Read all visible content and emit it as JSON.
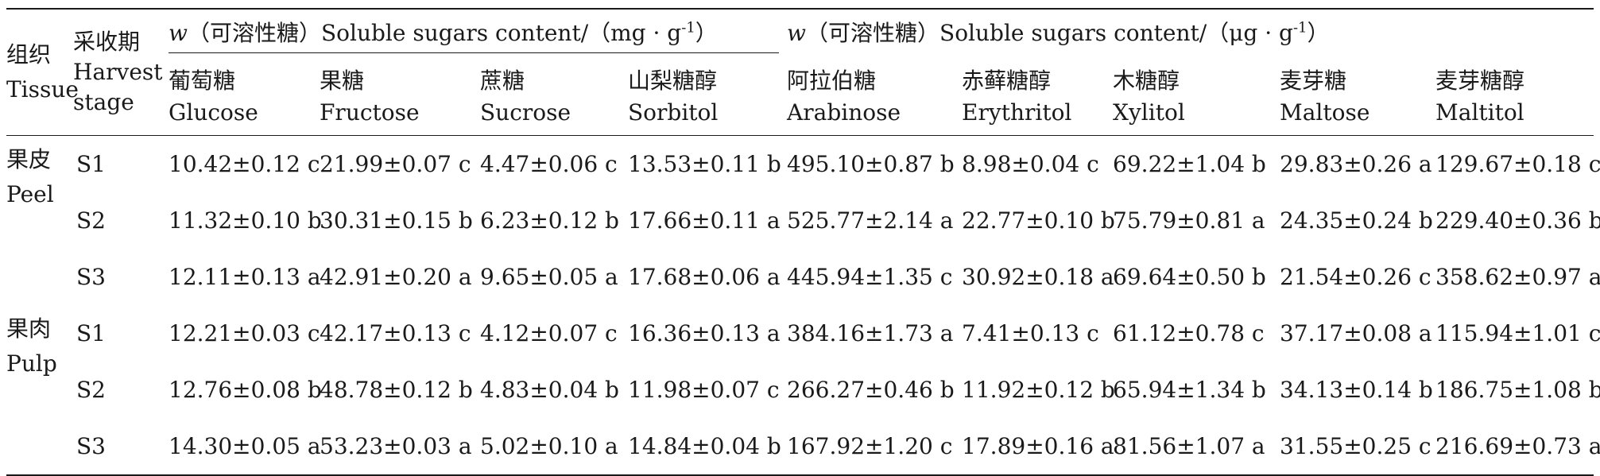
{
  "headers": {
    "tissue": [
      "组织",
      "Tissue"
    ],
    "stage": [
      "采收期",
      "Harvest",
      "stage"
    ],
    "group1": {
      "var": "w",
      "text": "（可溶性糖）Soluble sugars content/（mg · g",
      "sup": "-1",
      "close": "）"
    },
    "group2": {
      "var": "w",
      "text": "（可溶性糖）Soluble sugars content/（μg · g",
      "sup": "-1",
      "close": "）"
    },
    "cols": [
      [
        "葡萄糖",
        "Glucose"
      ],
      [
        "果糖",
        "Fructose"
      ],
      [
        "蔗糖",
        "Sucrose"
      ],
      [
        "山梨糖醇",
        "Sorbitol"
      ],
      [
        "阿拉伯糖",
        "Arabinose"
      ],
      [
        "赤藓糖醇",
        "Erythritol"
      ],
      [
        "木糖醇",
        "Xylitol"
      ],
      [
        "麦芽糖",
        "Maltose"
      ],
      [
        "麦芽糖醇",
        "Maltitol"
      ]
    ]
  },
  "rows": [
    {
      "tissue": [
        "果皮",
        "Peel"
      ],
      "stage": "S1",
      "values": [
        "10.42±0.12 c",
        "21.99±0.07 c",
        "4.47±0.06 c",
        "13.53±0.11 b",
        "495.10±0.87 b",
        "8.98±0.04 c",
        "69.22±1.04 b",
        "29.83±0.26 a",
        "129.67±0.18 c"
      ]
    },
    {
      "tissue": null,
      "stage": "S2",
      "values": [
        "11.32±0.10 b",
        "30.31±0.15 b",
        "6.23±0.12 b",
        "17.66±0.11 a",
        "525.77±2.14 a",
        "22.77±0.10 b",
        "75.79±0.81 a",
        "24.35±0.24 b",
        "229.40±0.36 b"
      ]
    },
    {
      "tissue": null,
      "stage": "S3",
      "values": [
        "12.11±0.13 a",
        "42.91±0.20 a",
        "9.65±0.05 a",
        "17.68±0.06 a",
        "445.94±1.35 c",
        "30.92±0.18 a",
        "69.64±0.50 b",
        "21.54±0.26 c",
        "358.62±0.97 a"
      ]
    },
    {
      "tissue": [
        "果肉",
        "Pulp"
      ],
      "stage": "S1",
      "values": [
        "12.21±0.03 c",
        "42.17±0.13 c",
        "4.12±0.07 c",
        "16.36±0.13 a",
        "384.16±1.73 a",
        "7.41±0.13 c",
        "61.12±0.78 c",
        "37.17±0.08 a",
        "115.94±1.01 c"
      ]
    },
    {
      "tissue": null,
      "stage": "S2",
      "values": [
        "12.76±0.08 b",
        "48.78±0.12 b",
        "4.83±0.04 b",
        "11.98±0.07 c",
        "266.27±0.46 b",
        "11.92±0.12 b",
        "65.94±1.34 b",
        "34.13±0.14 b",
        "186.75±1.08 b"
      ]
    },
    {
      "tissue": null,
      "stage": "S3",
      "values": [
        "14.30±0.05 a",
        "53.23±0.03 a",
        "5.02±0.10 a",
        "14.84±0.04 b",
        "167.92±1.20 c",
        "17.89±0.16 a",
        "81.56±1.07 a",
        "31.55±0.25 c",
        "216.69±0.73 a"
      ]
    }
  ]
}
